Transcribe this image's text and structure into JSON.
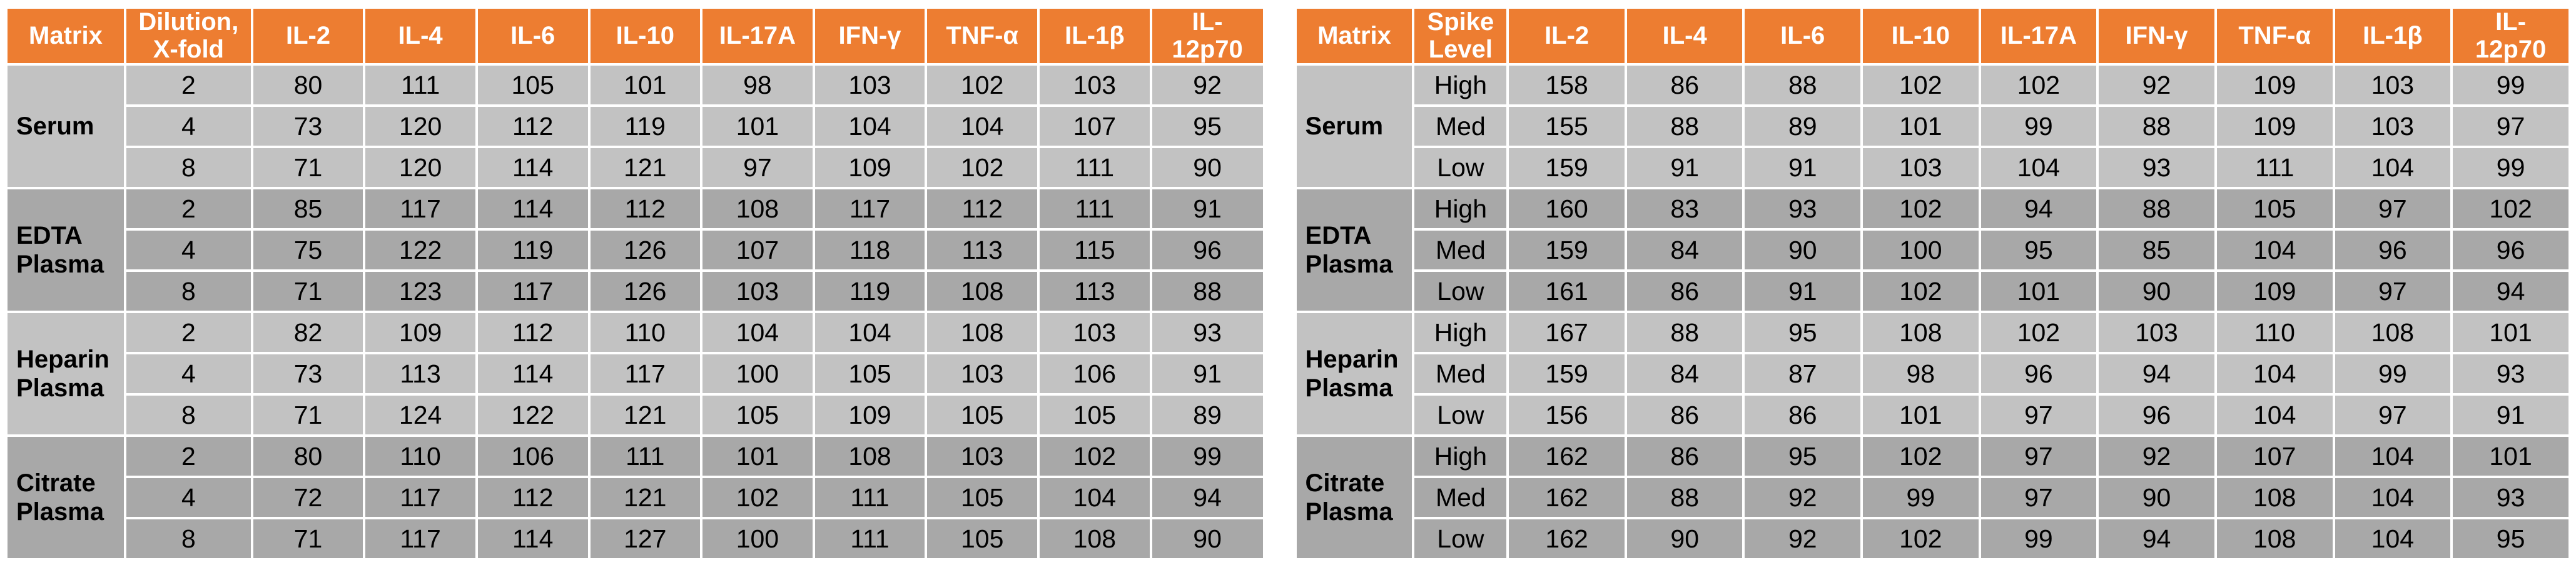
{
  "colors": {
    "header_bg": "#ED7D31",
    "header_text": "#FFFFFF",
    "row_light": "#C2C2C2",
    "row_dark": "#A8A8A8",
    "gridline": "#FFFFFF",
    "data_text": "#000000"
  },
  "analyte_wrap": {
    "IL-12p70": [
      "IL-",
      "12p70"
    ]
  },
  "tables": [
    {
      "id": "dilution-linearity-table",
      "matrix_header": "Matrix",
      "level_header": "Dilution, X-fold",
      "level_header_lines": [
        "Dilution,",
        "X-fold"
      ],
      "analytes": [
        "IL-2",
        "IL-4",
        "IL-6",
        "IL-10",
        "IL-17A",
        "IFN-γ",
        "TNF-α",
        "IL-1β",
        "IL-12p70"
      ],
      "groups": [
        {
          "matrix": "Serum",
          "rows": [
            {
              "level": "2",
              "values": [
                80,
                111,
                105,
                101,
                98,
                103,
                102,
                103,
                92
              ]
            },
            {
              "level": "4",
              "values": [
                73,
                120,
                112,
                119,
                101,
                104,
                104,
                107,
                95
              ]
            },
            {
              "level": "8",
              "values": [
                71,
                120,
                114,
                121,
                97,
                109,
                102,
                111,
                90
              ]
            }
          ]
        },
        {
          "matrix": "EDTA Plasma",
          "rows": [
            {
              "level": "2",
              "values": [
                85,
                117,
                114,
                112,
                108,
                117,
                112,
                111,
                91
              ]
            },
            {
              "level": "4",
              "values": [
                75,
                122,
                119,
                126,
                107,
                118,
                113,
                115,
                96
              ]
            },
            {
              "level": "8",
              "values": [
                71,
                123,
                117,
                126,
                103,
                119,
                108,
                113,
                88
              ]
            }
          ]
        },
        {
          "matrix": "Heparin Plasma",
          "rows": [
            {
              "level": "2",
              "values": [
                82,
                109,
                112,
                110,
                104,
                104,
                108,
                103,
                93
              ]
            },
            {
              "level": "4",
              "values": [
                73,
                113,
                114,
                117,
                100,
                105,
                103,
                106,
                91
              ]
            },
            {
              "level": "8",
              "values": [
                71,
                124,
                122,
                121,
                105,
                109,
                105,
                105,
                89
              ]
            }
          ]
        },
        {
          "matrix": "Citrate Plasma",
          "rows": [
            {
              "level": "2",
              "values": [
                80,
                110,
                106,
                111,
                101,
                108,
                103,
                102,
                99
              ]
            },
            {
              "level": "4",
              "values": [
                72,
                117,
                112,
                121,
                102,
                111,
                105,
                104,
                94
              ]
            },
            {
              "level": "8",
              "values": [
                71,
                117,
                114,
                127,
                100,
                111,
                105,
                108,
                90
              ]
            }
          ]
        }
      ]
    },
    {
      "id": "spike-recovery-table",
      "matrix_header": "Matrix",
      "level_header": "Spike Level",
      "level_header_lines": [
        "Spike",
        "Level"
      ],
      "analytes": [
        "IL-2",
        "IL-4",
        "IL-6",
        "IL-10",
        "IL-17A",
        "IFN-γ",
        "TNF-α",
        "IL-1β",
        "IL-12p70"
      ],
      "groups": [
        {
          "matrix": "Serum",
          "rows": [
            {
              "level": "High",
              "values": [
                158,
                86,
                88,
                102,
                102,
                92,
                109,
                103,
                99
              ]
            },
            {
              "level": "Med",
              "values": [
                155,
                88,
                89,
                101,
                99,
                88,
                109,
                103,
                97
              ]
            },
            {
              "level": "Low",
              "values": [
                159,
                91,
                91,
                103,
                104,
                93,
                111,
                104,
                99
              ]
            }
          ]
        },
        {
          "matrix": "EDTA Plasma",
          "rows": [
            {
              "level": "High",
              "values": [
                160,
                83,
                93,
                102,
                94,
                88,
                105,
                97,
                102
              ]
            },
            {
              "level": "Med",
              "values": [
                159,
                84,
                90,
                100,
                95,
                85,
                104,
                96,
                96
              ]
            },
            {
              "level": "Low",
              "values": [
                161,
                86,
                91,
                102,
                101,
                90,
                109,
                97,
                94
              ]
            }
          ]
        },
        {
          "matrix": "Heparin Plasma",
          "rows": [
            {
              "level": "High",
              "values": [
                167,
                88,
                95,
                108,
                102,
                103,
                110,
                108,
                101
              ]
            },
            {
              "level": "Med",
              "values": [
                159,
                84,
                87,
                98,
                96,
                94,
                104,
                99,
                93
              ]
            },
            {
              "level": "Low",
              "values": [
                156,
                86,
                86,
                101,
                97,
                96,
                104,
                97,
                91
              ]
            }
          ]
        },
        {
          "matrix": "Citrate Plasma",
          "rows": [
            {
              "level": "High",
              "values": [
                162,
                86,
                95,
                102,
                97,
                92,
                107,
                104,
                101
              ]
            },
            {
              "level": "Med",
              "values": [
                162,
                88,
                92,
                99,
                97,
                90,
                108,
                104,
                93
              ]
            },
            {
              "level": "Low",
              "values": [
                162,
                90,
                92,
                102,
                99,
                94,
                108,
                104,
                95
              ]
            }
          ]
        }
      ]
    }
  ]
}
